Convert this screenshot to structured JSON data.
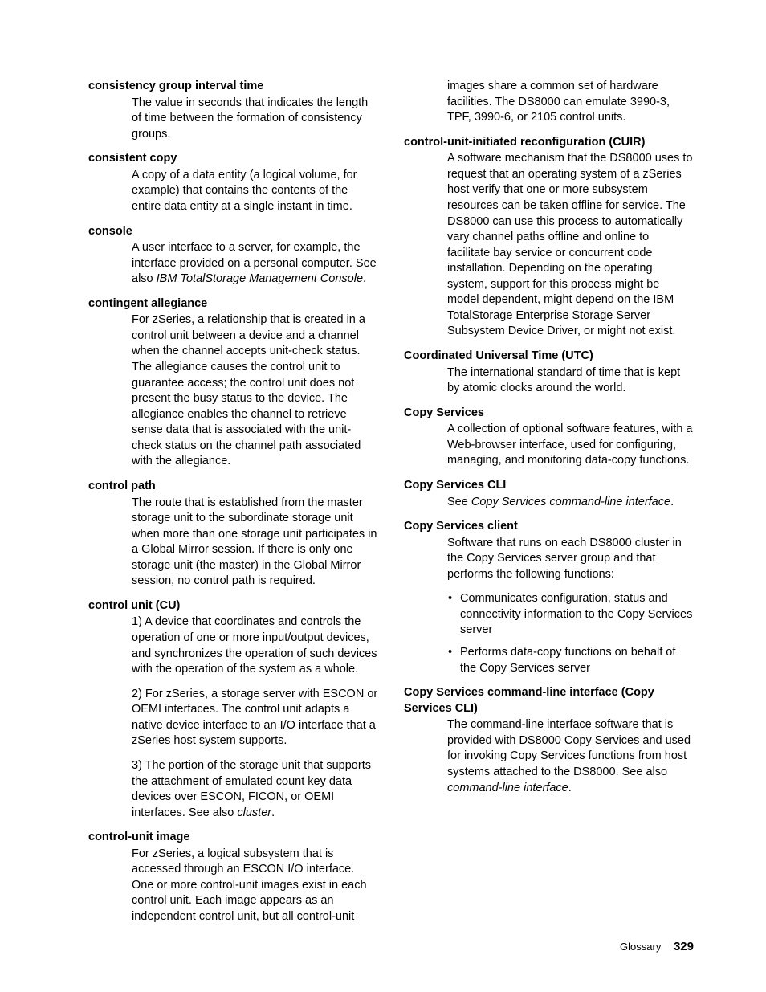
{
  "page": {
    "footer_label": "Glossary",
    "page_number": "329"
  },
  "entries": [
    {
      "term": "consistency group interval time",
      "definition": [
        {
          "type": "p",
          "runs": [
            {
              "text": "The value in seconds that indicates the length of time between the formation of consistency groups."
            }
          ]
        }
      ]
    },
    {
      "term": "consistent copy",
      "definition": [
        {
          "type": "p",
          "runs": [
            {
              "text": "A copy of a data entity (a logical volume, for example) that contains the contents of the entire data entity at a single instant in time."
            }
          ]
        }
      ]
    },
    {
      "term": "console",
      "definition": [
        {
          "type": "p",
          "runs": [
            {
              "text": "A user interface to a server, for example, the interface provided on a personal computer. See also "
            },
            {
              "text": "IBM TotalStorage Management Console",
              "italic": true
            },
            {
              "text": "."
            }
          ]
        }
      ]
    },
    {
      "term": "contingent allegiance",
      "definition": [
        {
          "type": "p",
          "runs": [
            {
              "text": "For zSeries, a relationship that is created in a control unit between a device and a channel when the channel accepts unit-check status. The allegiance causes the control unit to guarantee access; the control unit does not present the busy status to the device. The allegiance enables the channel to retrieve sense data that is associated with the unit-check status on the channel path associated with the allegiance."
            }
          ]
        }
      ]
    },
    {
      "term": "control path",
      "definition": [
        {
          "type": "p",
          "runs": [
            {
              "text": "The route that is established from the master storage unit to the subordinate storage unit when more than one storage unit participates in a Global Mirror session. If there is only one storage unit (the master) in the Global Mirror session, no control path is required."
            }
          ]
        }
      ]
    },
    {
      "term": "control unit (CU)",
      "definition": [
        {
          "type": "p",
          "runs": [
            {
              "text": "1) A device that coordinates and controls the operation of one or more input/output devices, and synchronizes the operation of such devices with the operation of the system as a whole."
            }
          ]
        },
        {
          "type": "p",
          "runs": [
            {
              "text": "2) For zSeries, a storage server with ESCON or OEMI interfaces. The control unit adapts a native device interface to an I/O interface that a zSeries host system supports."
            }
          ]
        },
        {
          "type": "p",
          "runs": [
            {
              "text": "3) The portion of the storage unit that supports the attachment of emulated count key data devices over ESCON, FICON, or OEMI interfaces. See also "
            },
            {
              "text": "cluster",
              "italic": true
            },
            {
              "text": "."
            }
          ]
        }
      ]
    },
    {
      "term": "control-unit image",
      "flow": true,
      "definition": [
        {
          "type": "p",
          "runs": [
            {
              "text": "For zSeries, a logical subsystem that is accessed through an ESCON I/O interface. One or more control-unit images exist in each control unit. Each image appears as an independent control unit, but all control-unit images share a common set of hardware facilities. The DS8000 can emulate 3990-3, TPF, 3990-6, or 2105 control units."
            }
          ]
        }
      ]
    },
    {
      "term": "control-unit-initiated reconfiguration (CUIR)",
      "definition": [
        {
          "type": "p",
          "runs": [
            {
              "text": "A software mechanism that the DS8000 uses to request that an operating system of a zSeries host verify that one or more subsystem resources can be taken offline for service. The DS8000 can use this process to automatically vary channel paths offline and online to facilitate bay service or concurrent code installation. Depending on the operating system, support for this process might be model dependent, might depend on the IBM TotalStorage Enterprise Storage Server Subsystem Device Driver, or might not exist."
            }
          ]
        }
      ]
    },
    {
      "term": "Coordinated Universal Time (UTC)",
      "definition": [
        {
          "type": "p",
          "runs": [
            {
              "text": "The international standard of time that is kept by atomic clocks around the world."
            }
          ]
        }
      ]
    },
    {
      "term": "Copy Services",
      "definition": [
        {
          "type": "p",
          "runs": [
            {
              "text": "A collection of optional software features, with a Web-browser interface, used for configuring, managing, and monitoring data-copy functions."
            }
          ]
        }
      ]
    },
    {
      "term": "Copy Services CLI",
      "definition": [
        {
          "type": "p",
          "runs": [
            {
              "text": "See "
            },
            {
              "text": "Copy Services command-line interface",
              "italic": true
            },
            {
              "text": "."
            }
          ]
        }
      ]
    },
    {
      "term": "Copy Services client",
      "definition": [
        {
          "type": "p",
          "runs": [
            {
              "text": "Software that runs on each DS8000 cluster in the Copy Services server group and that performs the following functions:"
            }
          ]
        },
        {
          "type": "ul",
          "items": [
            [
              {
                "text": "Communicates configuration, status and connectivity information to the Copy Services server"
              }
            ],
            [
              {
                "text": "Performs data-copy functions on behalf of the Copy Services server"
              }
            ]
          ]
        }
      ]
    },
    {
      "term": "Copy Services command-line interface (Copy Services CLI)",
      "definition": [
        {
          "type": "p",
          "runs": [
            {
              "text": "The command-line interface software that is provided with DS8000 Copy Services and used for invoking Copy Services functions from host systems attached to the DS8000. See also "
            },
            {
              "text": "command-line interface",
              "italic": true
            },
            {
              "text": "."
            }
          ]
        }
      ]
    }
  ]
}
